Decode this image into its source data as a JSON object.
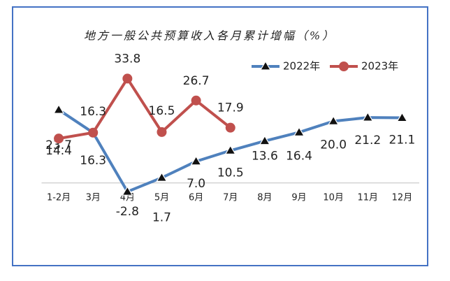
{
  "chart_data": {
    "type": "line",
    "title": "地方一般公共预算收入各月累计增幅（%）",
    "categories": [
      "1-2月",
      "3月",
      "4月",
      "5月",
      "6月",
      "7月",
      "8月",
      "9月",
      "10月",
      "11月",
      "12月"
    ],
    "series": [
      {
        "name": "2022年",
        "color": "#4f81bd",
        "values": [
          23.7,
          16.3,
          -2.8,
          1.7,
          7.0,
          10.5,
          13.6,
          16.4,
          20.0,
          21.2,
          21.1
        ],
        "value_labels": [
          "23.7",
          "16.3",
          "-2.8",
          "1.7",
          "7.0",
          "10.5",
          "13.6",
          "16.4",
          "20.0",
          "21.2",
          "21.1"
        ]
      },
      {
        "name": "2023年",
        "color": "#c0504d",
        "values": [
          14.4,
          16.3,
          33.8,
          16.5,
          26.7,
          17.9,
          null,
          null,
          null,
          null,
          null
        ],
        "value_labels": [
          "14.4",
          "16.3",
          "33.8",
          "16.5",
          "26.7",
          "17.9",
          null,
          null,
          null,
          null,
          null
        ]
      }
    ],
    "ylim": [
      -10,
      40
    ],
    "legend": "top-right"
  }
}
